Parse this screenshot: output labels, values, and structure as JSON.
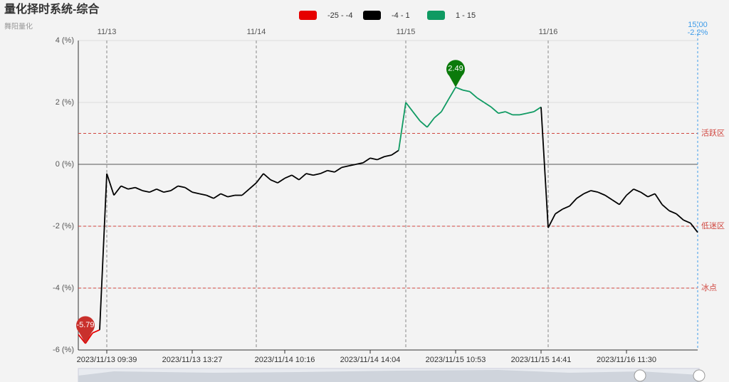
{
  "chart_data": {
    "type": "line",
    "title": "量化择时系统-综合",
    "subtitle": "舞阳量化",
    "pieces": [
      {
        "min": -25,
        "max": -4,
        "label": "-25 - -4",
        "color": "#e60000"
      },
      {
        "min": -4,
        "max": 1,
        "label": "-4 - 1",
        "color": "#000000"
      },
      {
        "min": 1,
        "max": 15,
        "label": "1 - 15",
        "color": "#0f9a62"
      }
    ],
    "categories": [
      null,
      null,
      null,
      null,
      "2023/11/13 09:39",
      null,
      null,
      null,
      null,
      null,
      null,
      null,
      null,
      null,
      null,
      null,
      "2023/11/13 13:27",
      null,
      null,
      null,
      null,
      null,
      null,
      null,
      null,
      null,
      null,
      null,
      null,
      "2023/11/14 10:16",
      null,
      null,
      null,
      null,
      null,
      null,
      null,
      null,
      null,
      null,
      null,
      "2023/11/14 14:04",
      null,
      null,
      null,
      null,
      null,
      null,
      null,
      null,
      null,
      null,
      null,
      "2023/11/15 10:53",
      null,
      null,
      null,
      null,
      null,
      null,
      null,
      null,
      null,
      null,
      null,
      "2023/11/15 14:41",
      null,
      null,
      null,
      null,
      null,
      null,
      null,
      null,
      null,
      null,
      null,
      "2023/11/16 11:30",
      null,
      null,
      null,
      null,
      null,
      null,
      null,
      null,
      null,
      null
    ],
    "top_categories": [
      null,
      null,
      null,
      null,
      "11/13",
      null,
      null,
      null,
      null,
      null,
      null,
      null,
      null,
      null,
      null,
      null,
      null,
      null,
      null,
      null,
      null,
      null,
      null,
      null,
      null,
      "11/14",
      null,
      null,
      null,
      null,
      null,
      null,
      null,
      null,
      null,
      null,
      null,
      null,
      null,
      null,
      null,
      null,
      null,
      null,
      null,
      null,
      "11/15",
      null,
      null,
      null,
      null,
      null,
      null,
      null,
      null,
      null,
      null,
      null,
      null,
      null,
      null,
      null,
      null,
      null,
      null,
      null,
      "11/16",
      null,
      null,
      null,
      null,
      null,
      null,
      null,
      null,
      null,
      null,
      null,
      null,
      null,
      null,
      null,
      null,
      null,
      null,
      null,
      null,
      null
    ],
    "values": [
      -5.5,
      -5.79,
      -5.45,
      -5.35,
      -0.3,
      -1.0,
      -0.7,
      -0.8,
      -0.75,
      -0.85,
      -0.9,
      -0.8,
      -0.9,
      -0.85,
      -0.7,
      -0.75,
      -0.9,
      -0.95,
      -1.0,
      -1.1,
      -0.95,
      -1.05,
      -1.0,
      -1.0,
      -0.8,
      -0.6,
      -0.3,
      -0.5,
      -0.6,
      -0.45,
      -0.35,
      -0.5,
      -0.3,
      -0.35,
      -0.3,
      -0.2,
      -0.25,
      -0.1,
      -0.05,
      0.0,
      0.05,
      0.2,
      0.15,
      0.25,
      0.3,
      0.45,
      2.0,
      1.7,
      1.4,
      1.2,
      1.5,
      1.7,
      2.1,
      2.49,
      2.4,
      2.35,
      2.15,
      2.0,
      1.85,
      1.65,
      1.7,
      1.6,
      1.6,
      1.65,
      1.7,
      1.85,
      -2.05,
      -1.6,
      -1.45,
      -1.35,
      -1.1,
      -0.95,
      -0.85,
      -0.9,
      -1.0,
      -1.15,
      -1.3,
      -1.0,
      -0.8,
      -0.9,
      -1.05,
      -0.95,
      -1.3,
      -1.5,
      -1.6,
      -1.8,
      -1.9,
      -2.2
    ],
    "ylim": [
      -6,
      4
    ],
    "yticks": [
      {
        "value": 4,
        "label": "4 (%)"
      },
      {
        "value": 2,
        "label": "2 (%)"
      },
      {
        "value": 0,
        "label": "0 (%)"
      },
      {
        "value": -2,
        "label": "-2 (%)"
      },
      {
        "value": -4,
        "label": "-4 (%)"
      },
      {
        "value": -6,
        "label": "-6 (%)"
      }
    ],
    "mark_lines": [
      {
        "value": 1,
        "label": "活跃区"
      },
      {
        "value": -2,
        "label": "低迷区"
      },
      {
        "value": -4,
        "label": "冰点"
      }
    ],
    "mark_points": [
      {
        "value": 2.49,
        "color": "#0b7a0b"
      },
      {
        "value": -5.79,
        "color": "#c9302c"
      }
    ],
    "end_label": {
      "time": "15:00",
      "value": -2.2,
      "value_label": "-2.2%"
    }
  }
}
